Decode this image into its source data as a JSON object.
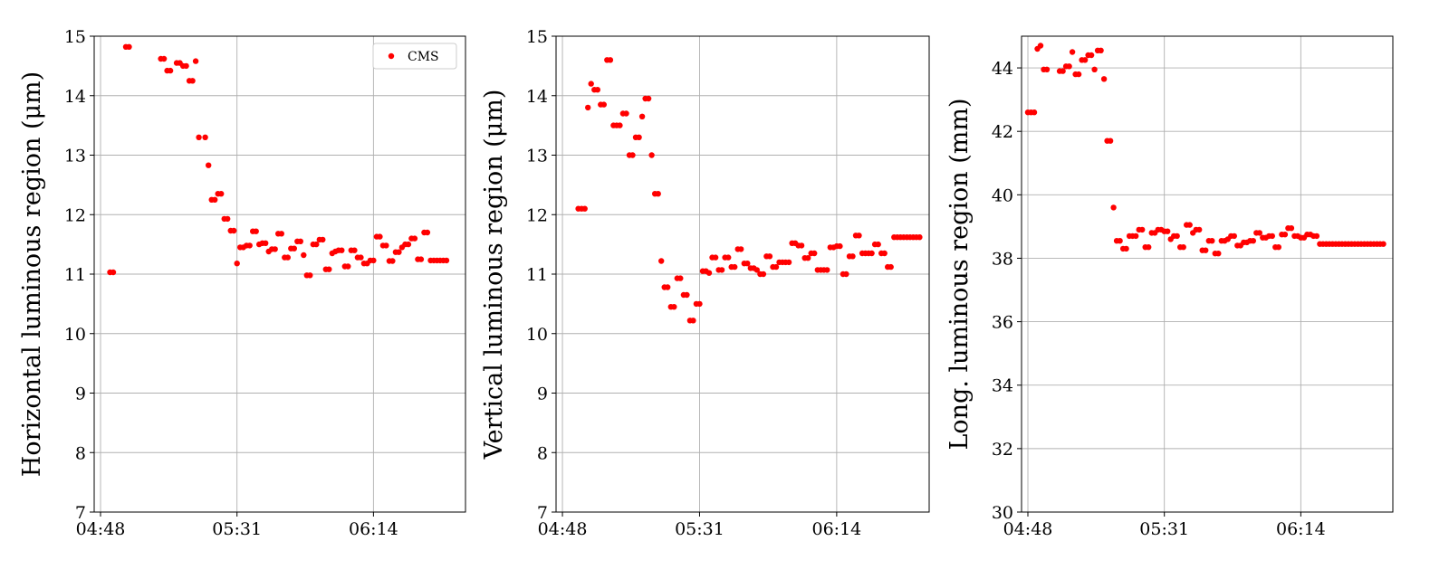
{
  "chart_data": [
    {
      "type": "scatter",
      "ylabel": "Horizontal luminous region (μm)",
      "ylim": [
        7,
        15
      ],
      "yticks": [
        "7",
        "8",
        "9",
        "10",
        "11",
        "12",
        "13",
        "14",
        "15"
      ],
      "xticks": [
        "04:48",
        "05:31",
        "06:14"
      ],
      "grid": true,
      "legend": {
        "entries": [
          "CMS"
        ],
        "placement": "top-right"
      },
      "series": [
        {
          "name": "CMS",
          "color": "#ff0000",
          "x": [
            "04:51",
            "04:52",
            "04:56",
            "04:57",
            "05:07",
            "05:08",
            "05:09",
            "05:10",
            "05:12",
            "05:13",
            "05:14",
            "05:15",
            "05:16",
            "05:17",
            "05:18",
            "05:19",
            "05:21",
            "05:22",
            "05:23",
            "05:24",
            "05:25",
            "05:26",
            "05:27",
            "05:28",
            "05:29",
            "05:30",
            "05:31",
            "05:32",
            "05:33",
            "05:34",
            "05:35",
            "05:36",
            "05:37",
            "05:38",
            "05:39",
            "05:40",
            "05:41",
            "05:42",
            "05:43",
            "05:44",
            "05:45",
            "05:46",
            "05:47",
            "05:48",
            "05:49",
            "05:50",
            "05:51",
            "05:52",
            "05:53",
            "05:54",
            "05:55",
            "05:56",
            "05:57",
            "05:58",
            "05:59",
            "06:00",
            "06:01",
            "06:02",
            "06:03",
            "06:04",
            "06:05",
            "06:06",
            "06:07",
            "06:08",
            "06:09",
            "06:10",
            "06:11",
            "06:12",
            "06:13",
            "06:14",
            "06:15",
            "06:16",
            "06:17",
            "06:18",
            "06:19",
            "06:20",
            "06:21",
            "06:22",
            "06:23",
            "06:24",
            "06:25",
            "06:26",
            "06:27",
            "06:28",
            "06:29",
            "06:30",
            "06:31",
            "06:32",
            "06:33",
            "06:34",
            "06:35",
            "06:36",
            "06:37"
          ],
          "y": [
            11.03,
            11.03,
            14.82,
            14.82,
            14.62,
            14.62,
            14.42,
            14.42,
            14.55,
            14.55,
            14.5,
            14.5,
            14.25,
            14.25,
            14.58,
            13.3,
            13.3,
            12.83,
            12.25,
            12.25,
            12.35,
            12.35,
            11.93,
            11.93,
            11.73,
            11.73,
            11.18,
            11.45,
            11.45,
            11.48,
            11.48,
            11.72,
            11.72,
            11.5,
            11.52,
            11.52,
            11.38,
            11.42,
            11.42,
            11.68,
            11.68,
            11.28,
            11.28,
            11.43,
            11.43,
            11.55,
            11.55,
            11.32,
            10.98,
            10.98,
            11.5,
            11.5,
            11.58,
            11.58,
            11.08,
            11.08,
            11.35,
            11.38,
            11.4,
            11.4,
            11.13,
            11.13,
            11.4,
            11.4,
            11.28,
            11.28,
            11.18,
            11.18,
            11.23,
            11.23,
            11.63,
            11.63,
            11.48,
            11.48,
            11.22,
            11.22,
            11.37,
            11.37,
            11.45,
            11.5,
            11.5,
            11.6,
            11.6,
            11.25,
            11.25,
            11.7,
            11.7,
            11.23,
            11.23,
            11.23,
            11.23,
            11.23,
            11.23
          ]
        }
      ]
    },
    {
      "type": "scatter",
      "ylabel": "Vertical luminous region (μm)",
      "ylim": [
        7,
        15
      ],
      "yticks": [
        "7",
        "8",
        "9",
        "10",
        "11",
        "12",
        "13",
        "14",
        "15"
      ],
      "xticks": [
        "04:48",
        "05:31",
        "06:14"
      ],
      "grid": true,
      "series": [
        {
          "name": "",
          "color": "#ff0000",
          "x": [
            "04:53",
            "04:54",
            "04:55",
            "04:56",
            "04:57",
            "04:58",
            "04:59",
            "05:00",
            "05:01",
            "05:02",
            "05:03",
            "05:04",
            "05:05",
            "05:06",
            "05:07",
            "05:08",
            "05:09",
            "05:10",
            "05:11",
            "05:12",
            "05:13",
            "05:14",
            "05:15",
            "05:16",
            "05:17",
            "05:18",
            "05:19",
            "05:20",
            "05:21",
            "05:22",
            "05:23",
            "05:24",
            "05:25",
            "05:26",
            "05:27",
            "05:28",
            "05:29",
            "05:30",
            "05:31",
            "05:32",
            "05:33",
            "05:34",
            "05:35",
            "05:36",
            "05:37",
            "05:38",
            "05:39",
            "05:40",
            "05:41",
            "05:42",
            "05:43",
            "05:44",
            "05:45",
            "05:46",
            "05:47",
            "05:48",
            "05:49",
            "05:50",
            "05:51",
            "05:52",
            "05:53",
            "05:54",
            "05:55",
            "05:56",
            "05:57",
            "05:58",
            "05:59",
            "06:00",
            "06:01",
            "06:02",
            "06:03",
            "06:04",
            "06:05",
            "06:06",
            "06:07",
            "06:08",
            "06:09",
            "06:10",
            "06:11",
            "06:12",
            "06:13",
            "06:14",
            "06:15",
            "06:16",
            "06:17",
            "06:18",
            "06:19",
            "06:20",
            "06:21",
            "06:22",
            "06:23",
            "06:24",
            "06:25",
            "06:26",
            "06:27",
            "06:28",
            "06:29",
            "06:30",
            "06:31",
            "06:32",
            "06:33",
            "06:34",
            "06:35",
            "06:36",
            "06:37",
            "06:38",
            "06:39",
            "06:40"
          ],
          "y": [
            12.1,
            12.1,
            12.1,
            13.8,
            14.2,
            14.1,
            14.1,
            13.85,
            13.85,
            14.6,
            14.6,
            13.5,
            13.5,
            13.5,
            13.7,
            13.7,
            13.0,
            13.0,
            13.3,
            13.3,
            13.65,
            13.95,
            13.95,
            13.0,
            12.35,
            12.35,
            11.22,
            10.78,
            10.78,
            10.45,
            10.45,
            10.93,
            10.93,
            10.65,
            10.65,
            10.22,
            10.22,
            10.5,
            10.5,
            11.05,
            11.05,
            11.02,
            11.28,
            11.28,
            11.07,
            11.07,
            11.28,
            11.28,
            11.12,
            11.12,
            11.42,
            11.42,
            11.18,
            11.18,
            11.1,
            11.1,
            11.07,
            11.0,
            11.0,
            11.3,
            11.3,
            11.12,
            11.12,
            11.2,
            11.2,
            11.2,
            11.2,
            11.52,
            11.52,
            11.48,
            11.48,
            11.27,
            11.27,
            11.35,
            11.35,
            11.07,
            11.07,
            11.07,
            11.07,
            11.45,
            11.45,
            11.47,
            11.47,
            11.0,
            11.0,
            11.3,
            11.3,
            11.65,
            11.65,
            11.35,
            11.35,
            11.35,
            11.35,
            11.5,
            11.5,
            11.35,
            11.35,
            11.12,
            11.12,
            11.62,
            11.62,
            11.62,
            11.62,
            11.62,
            11.62,
            11.62,
            11.62,
            11.62
          ]
        }
      ]
    },
    {
      "type": "scatter",
      "ylabel": "Long. luminous region (mm)",
      "ylim": [
        30,
        45
      ],
      "yticks": [
        "30",
        "32",
        "34",
        "36",
        "38",
        "40",
        "42",
        "44"
      ],
      "xticks": [
        "04:48",
        "05:31",
        "06:14"
      ],
      "grid": true,
      "series": [
        {
          "name": "",
          "color": "#ff0000",
          "x": [
            "04:48",
            "04:49",
            "04:50",
            "04:51",
            "04:52",
            "04:53",
            "04:54",
            "04:58",
            "04:59",
            "05:00",
            "05:01",
            "05:02",
            "05:03",
            "05:04",
            "05:05",
            "05:06",
            "05:07",
            "05:08",
            "05:09",
            "05:10",
            "05:11",
            "05:12",
            "05:13",
            "05:14",
            "05:15",
            "05:16",
            "05:17",
            "05:18",
            "05:19",
            "05:20",
            "05:21",
            "05:22",
            "05:23",
            "05:24",
            "05:25",
            "05:26",
            "05:27",
            "05:28",
            "05:29",
            "05:30",
            "05:31",
            "05:32",
            "05:33",
            "05:34",
            "05:35",
            "05:36",
            "05:37",
            "05:38",
            "05:39",
            "05:40",
            "05:41",
            "05:42",
            "05:43",
            "05:44",
            "05:45",
            "05:46",
            "05:47",
            "05:48",
            "05:49",
            "05:50",
            "05:51",
            "05:52",
            "05:53",
            "05:54",
            "05:55",
            "05:56",
            "05:57",
            "05:58",
            "05:59",
            "06:00",
            "06:01",
            "06:02",
            "06:03",
            "06:04",
            "06:05",
            "06:06",
            "06:07",
            "06:08",
            "06:09",
            "06:10",
            "06:11",
            "06:12",
            "06:13",
            "06:14",
            "06:15",
            "06:16",
            "06:17",
            "06:18",
            "06:19",
            "06:20",
            "06:21",
            "06:22",
            "06:23",
            "06:24",
            "06:25",
            "06:26",
            "06:27",
            "06:28",
            "06:29",
            "06:30",
            "06:31",
            "06:32",
            "06:33",
            "06:34",
            "06:35",
            "06:36",
            "06:37",
            "06:38",
            "06:39",
            "06:40"
          ],
          "y": [
            42.6,
            42.6,
            42.6,
            44.6,
            44.7,
            43.95,
            43.95,
            43.9,
            43.9,
            44.05,
            44.05,
            44.5,
            43.8,
            43.8,
            44.25,
            44.25,
            44.4,
            44.4,
            43.95,
            44.55,
            44.55,
            43.65,
            41.7,
            41.7,
            39.6,
            38.55,
            38.55,
            38.3,
            38.3,
            38.7,
            38.7,
            38.7,
            38.9,
            38.9,
            38.35,
            38.35,
            38.8,
            38.8,
            38.9,
            38.9,
            38.85,
            38.85,
            38.6,
            38.7,
            38.7,
            38.35,
            38.35,
            39.05,
            39.05,
            38.8,
            38.9,
            38.9,
            38.25,
            38.25,
            38.55,
            38.55,
            38.15,
            38.15,
            38.55,
            38.55,
            38.6,
            38.7,
            38.7,
            38.4,
            38.4,
            38.5,
            38.5,
            38.55,
            38.55,
            38.8,
            38.8,
            38.65,
            38.65,
            38.7,
            38.7,
            38.35,
            38.35,
            38.75,
            38.75,
            38.95,
            38.95,
            38.7,
            38.7,
            38.65,
            38.65,
            38.75,
            38.75,
            38.7,
            38.7,
            38.45,
            38.45,
            38.45,
            38.45,
            38.45,
            38.45,
            38.45,
            38.45,
            38.45,
            38.45,
            38.45,
            38.45,
            38.45,
            38.45,
            38.45,
            38.45,
            38.45,
            38.45,
            38.45,
            38.45,
            38.45
          ]
        }
      ]
    }
  ]
}
